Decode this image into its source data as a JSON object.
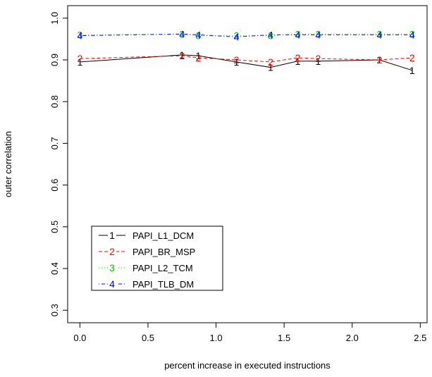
{
  "chart_data": {
    "type": "line",
    "xlabel": "percent increase in executed instructions",
    "ylabel": "outer correlation",
    "xlim": [
      -0.09,
      2.55
    ],
    "ylim": [
      0.27,
      1.03
    ],
    "xticks": [
      0.0,
      0.5,
      1.0,
      1.5,
      2.0,
      2.5
    ],
    "xtick_labels": [
      "0.0",
      "0.5",
      "1.0",
      "1.5",
      "2.0",
      "2.5"
    ],
    "yticks": [
      0.3,
      0.4,
      0.5,
      0.6,
      0.7,
      0.8,
      0.9,
      1.0
    ],
    "ytick_labels": [
      "0.3",
      "0.4",
      "0.5",
      "0.6",
      "0.7",
      "0.8",
      "0.9",
      "1.0"
    ],
    "grid": false,
    "legend_position": "bottom-left",
    "series": [
      {
        "name": "PAPI_L1_DCM",
        "symbol": "1",
        "color": "#000000",
        "dash": "solid",
        "x": [
          0.0,
          0.75,
          0.87,
          1.15,
          1.4,
          1.6,
          1.75,
          2.2,
          2.44
        ],
        "y": [
          0.895,
          0.912,
          0.91,
          0.895,
          0.882,
          0.897,
          0.897,
          0.9,
          0.875
        ]
      },
      {
        "name": "PAPI_BR_MSP",
        "symbol": "2",
        "color": "#ff0000",
        "dash": "dashed",
        "x": [
          0.0,
          0.75,
          0.87,
          1.15,
          1.4,
          1.6,
          1.75,
          2.2,
          2.44
        ],
        "y": [
          0.903,
          0.91,
          0.905,
          0.9,
          0.895,
          0.905,
          0.903,
          0.9,
          0.905
        ]
      },
      {
        "name": "PAPI_L2_TCM",
        "symbol": "3",
        "color": "#00c000",
        "dash": "dotted",
        "x": [
          0.0,
          0.75,
          0.87,
          1.15,
          1.4,
          1.6,
          1.75,
          2.2,
          2.44
        ],
        "y": [
          0.96,
          0.962,
          0.958,
          0.958,
          0.958,
          0.962,
          0.962,
          0.962,
          0.962
        ]
      },
      {
        "name": "PAPI_TLB_DM",
        "symbol": "4",
        "color": "#0000ff",
        "dash": "dotdash",
        "x": [
          0.0,
          0.75,
          0.87,
          1.15,
          1.4,
          1.6,
          1.75,
          2.2,
          2.44
        ],
        "y": [
          0.958,
          0.962,
          0.96,
          0.955,
          0.96,
          0.96,
          0.96,
          0.96,
          0.96
        ]
      }
    ]
  }
}
